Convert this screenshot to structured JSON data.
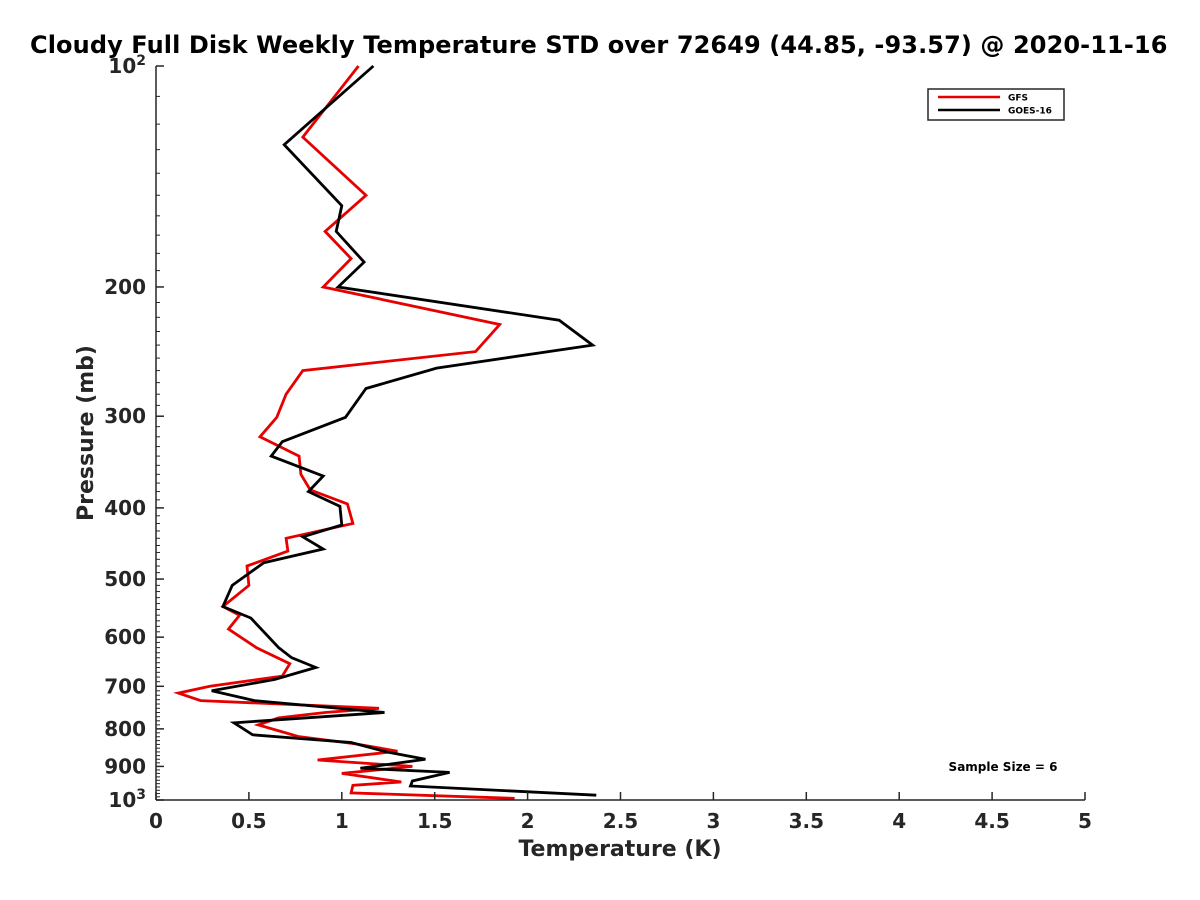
{
  "chart_data": {
    "type": "line",
    "title": "Cloudy Full Disk Weekly Temperature STD over 72649 (44.85, -93.57) @ 2020-11-16",
    "xlabel": "Temperature (K)",
    "ylabel": "Pressure (mb)",
    "xlim": [
      0,
      5
    ],
    "ylim": [
      100,
      1000
    ],
    "yscale": "log",
    "y_reversed": true,
    "xticks": [
      "0",
      "0.5",
      "1",
      "1.5",
      "2",
      "2.5",
      "3",
      "3.5",
      "4",
      "4.5",
      "5"
    ],
    "yticks": [
      {
        "value": 100,
        "base": "10",
        "exp": "2"
      },
      {
        "value": 200,
        "label": "200"
      },
      {
        "value": 300,
        "label": "300"
      },
      {
        "value": 400,
        "label": "400"
      },
      {
        "value": 500,
        "label": "500"
      },
      {
        "value": 600,
        "label": "600"
      },
      {
        "value": 700,
        "label": "700"
      },
      {
        "value": 800,
        "label": "800"
      },
      {
        "value": 900,
        "label": "900"
      },
      {
        "value": 1000,
        "base": "10",
        "exp": "3"
      }
    ],
    "legend_position": "top-right",
    "annotation": "Sample Size = 6",
    "series": [
      {
        "name": "GFS",
        "color": "#e60000",
        "points": [
          [
            1.09,
            100
          ],
          [
            0.79,
            125
          ],
          [
            1.13,
            150
          ],
          [
            0.91,
            168
          ],
          [
            1.05,
            183
          ],
          [
            0.9,
            200
          ],
          [
            1.85,
            225
          ],
          [
            1.72,
            245
          ],
          [
            0.79,
            260
          ],
          [
            0.7,
            280
          ],
          [
            0.65,
            301
          ],
          [
            0.56,
            320
          ],
          [
            0.77,
            340
          ],
          [
            0.78,
            360
          ],
          [
            0.83,
            378
          ],
          [
            1.03,
            395
          ],
          [
            1.06,
            420
          ],
          [
            0.7,
            440
          ],
          [
            0.71,
            458
          ],
          [
            0.49,
            480
          ],
          [
            0.5,
            510
          ],
          [
            0.36,
            545
          ],
          [
            0.45,
            560
          ],
          [
            0.39,
            585
          ],
          [
            0.54,
            620
          ],
          [
            0.72,
            652
          ],
          [
            0.68,
            678
          ],
          [
            0.29,
            700
          ],
          [
            0.12,
            715
          ],
          [
            0.24,
            732
          ],
          [
            1.2,
            750
          ],
          [
            0.91,
            760
          ],
          [
            0.66,
            773
          ],
          [
            0.55,
            790
          ],
          [
            0.77,
            820
          ],
          [
            1.07,
            838
          ],
          [
            1.3,
            858
          ],
          [
            0.87,
            882
          ],
          [
            1.38,
            900
          ],
          [
            1.0,
            920
          ],
          [
            1.32,
            945
          ],
          [
            1.06,
            955
          ],
          [
            1.05,
            978
          ],
          [
            1.93,
            995
          ]
        ]
      },
      {
        "name": "GOES-16",
        "color": "#000000",
        "points": [
          [
            1.17,
            100
          ],
          [
            0.69,
            128
          ],
          [
            1.0,
            155
          ],
          [
            0.97,
            168
          ],
          [
            1.12,
            185
          ],
          [
            0.98,
            200
          ],
          [
            2.17,
            222
          ],
          [
            2.35,
            240
          ],
          [
            1.51,
            258
          ],
          [
            1.13,
            275
          ],
          [
            1.02,
            301
          ],
          [
            0.68,
            325
          ],
          [
            0.62,
            340
          ],
          [
            0.9,
            362
          ],
          [
            0.82,
            380
          ],
          [
            0.99,
            398
          ],
          [
            1.0,
            422
          ],
          [
            0.79,
            438
          ],
          [
            0.9,
            455
          ],
          [
            0.58,
            475
          ],
          [
            0.41,
            510
          ],
          [
            0.36,
            545
          ],
          [
            0.51,
            565
          ],
          [
            0.66,
            620
          ],
          [
            0.73,
            640
          ],
          [
            0.86,
            660
          ],
          [
            0.64,
            685
          ],
          [
            0.3,
            710
          ],
          [
            0.53,
            732
          ],
          [
            1.23,
            760
          ],
          [
            0.42,
            785
          ],
          [
            0.52,
            815
          ],
          [
            1.05,
            835
          ],
          [
            1.24,
            860
          ],
          [
            1.45,
            880
          ],
          [
            1.1,
            905
          ],
          [
            1.58,
            917
          ],
          [
            1.38,
            942
          ],
          [
            1.37,
            957
          ],
          [
            2.37,
            985
          ]
        ]
      }
    ]
  }
}
